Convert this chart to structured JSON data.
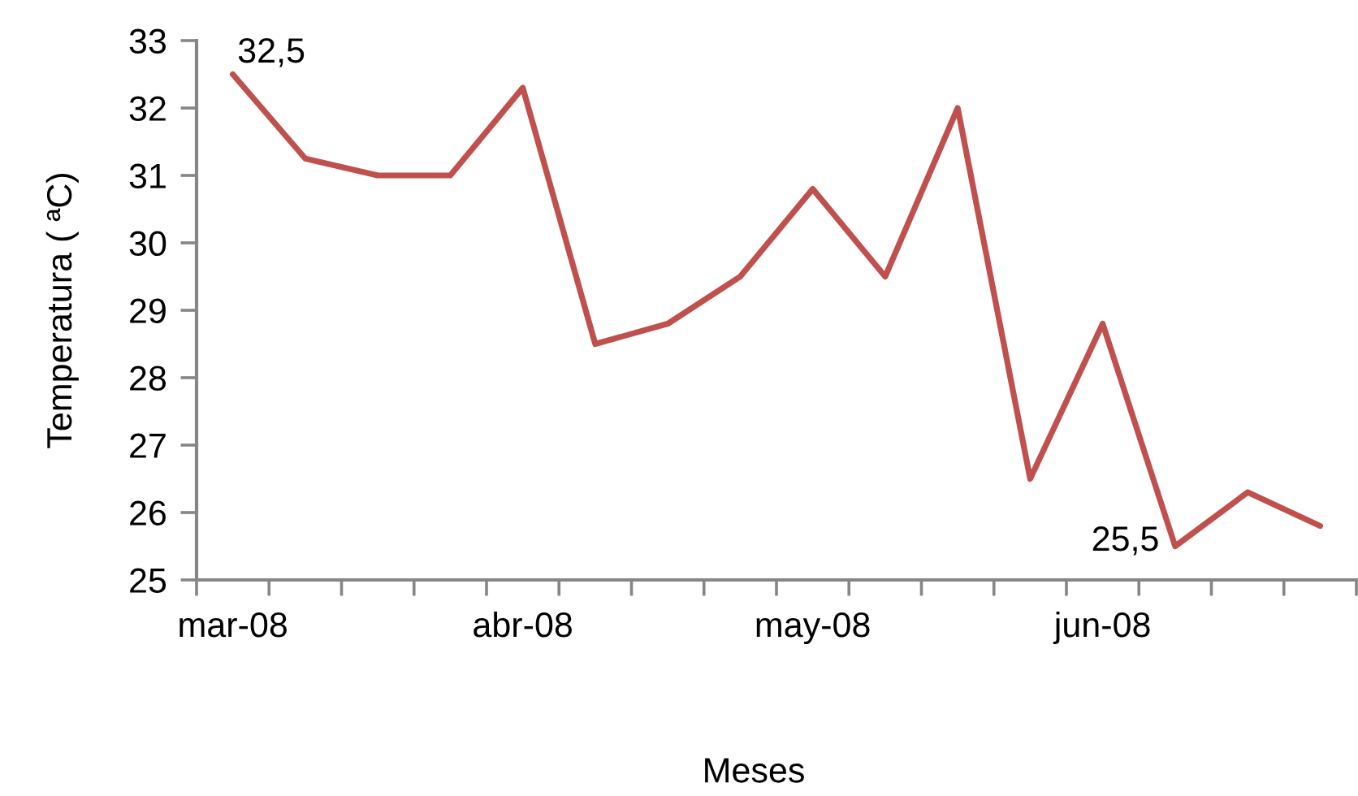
{
  "chart_data": {
    "type": "line",
    "xlabel": "Meses",
    "ylabel": "Temperatura ( ªC)",
    "categories": [
      "mar-08",
      null,
      null,
      null,
      "abr-08",
      null,
      null,
      null,
      "may-08",
      null,
      null,
      null,
      "jun-08",
      null,
      null,
      null
    ],
    "series": [
      {
        "color": "#c0504d",
        "values": [
          32.5,
          31.25,
          31.0,
          31.0,
          32.3,
          28.5,
          28.8,
          29.5,
          30.8,
          29.5,
          32.0,
          26.5,
          28.8,
          25.5,
          26.3,
          25.8
        ],
        "value_labels": [
          "32,5",
          null,
          null,
          null,
          null,
          null,
          null,
          null,
          null,
          null,
          null,
          null,
          null,
          "25,5",
          null,
          null
        ]
      }
    ],
    "ylim": [
      25,
      33
    ],
    "yticks": [
      25,
      26,
      27,
      28,
      29,
      30,
      31,
      32,
      33
    ],
    "grid": false,
    "marker": "none",
    "line_style": "solid"
  }
}
